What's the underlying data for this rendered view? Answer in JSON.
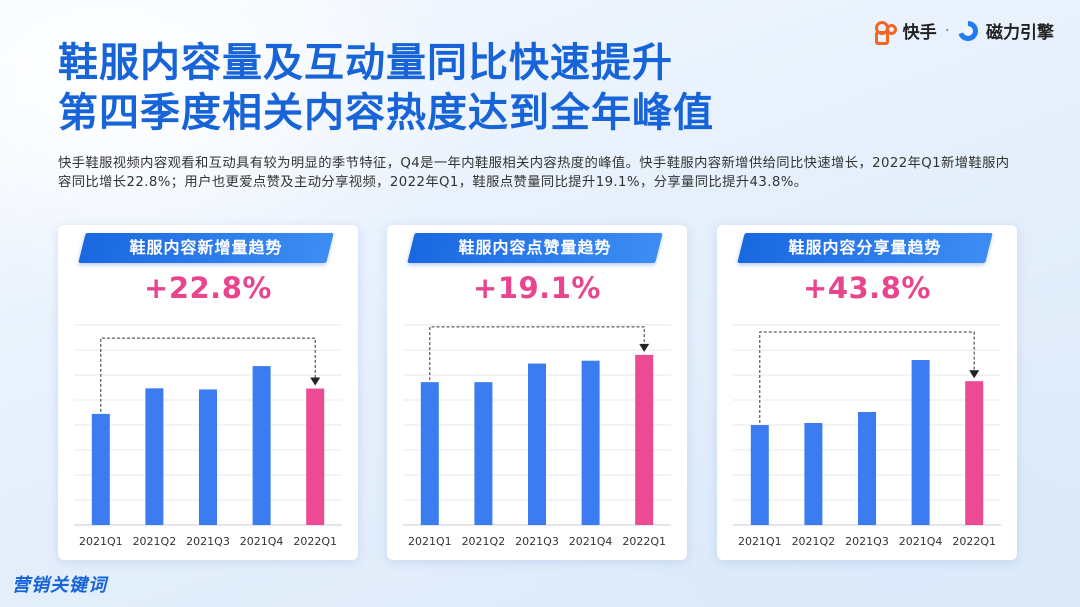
{
  "header": {
    "logo_kuaishou": "快手",
    "separator": "·",
    "logo_cili": "磁力引擎"
  },
  "title": {
    "line1": "鞋服内容量及互动量同比快速提升",
    "line2": "第四季度相关内容热度达到全年峰值"
  },
  "description": "快手鞋服视频内容观看和互动具有较为明显的季节特征，Q4是一年内鞋服相关内容热度的峰值。快手鞋服内容新增供给同比快速增长，2022年Q1新增鞋服内容同比增长22.8%；用户也更爱点赞及主动分享视频，2022年Q1，鞋服点赞量同比提升19.1%，分享量同比提升43.8%。",
  "footer_brand": "营销关键词",
  "colors": {
    "bar": "#3b7cf0",
    "highlight": "#ec4b93",
    "title": "#1763d8"
  },
  "chart_data": [
    {
      "type": "bar",
      "title": "鞋服内容新增量趋势",
      "growth_label": "+22.8%",
      "categories": [
        "2021Q1",
        "2021Q2",
        "2021Q3",
        "2021Q4",
        "2022Q1"
      ],
      "values": [
        100,
        123,
        122,
        143,
        122.8
      ],
      "highlight_index": 4,
      "compare": [
        0,
        4
      ],
      "ylim": [
        0,
        180
      ],
      "grid": true
    },
    {
      "type": "bar",
      "title": "鞋服内容点赞量趋势",
      "growth_label": "+19.1%",
      "categories": [
        "2021Q1",
        "2021Q2",
        "2021Q3",
        "2021Q4",
        "2022Q1"
      ],
      "values": [
        100,
        100,
        113,
        115,
        119.1
      ],
      "highlight_index": 4,
      "compare": [
        0,
        4
      ],
      "ylim": [
        0,
        140
      ],
      "grid": true
    },
    {
      "type": "bar",
      "title": "鞋服内容分享量趋势",
      "growth_label": "+43.8%",
      "categories": [
        "2021Q1",
        "2021Q2",
        "2021Q3",
        "2021Q4",
        "2022Q1"
      ],
      "values": [
        100,
        102,
        113,
        165,
        143.8
      ],
      "highlight_index": 4,
      "compare": [
        0,
        4
      ],
      "ylim": [
        0,
        200
      ],
      "grid": true
    }
  ]
}
